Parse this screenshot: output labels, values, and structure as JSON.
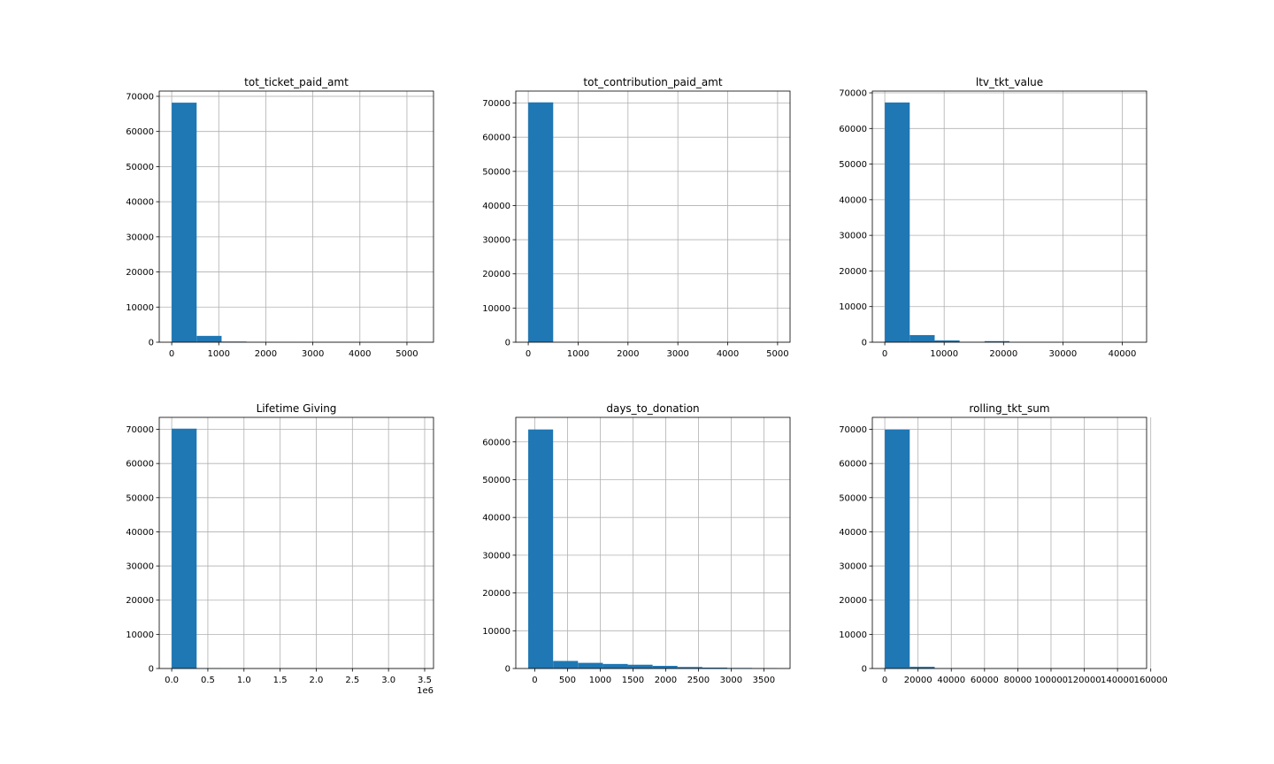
{
  "figure": {
    "bar_color": "#1f77b4",
    "grid_color": "#b0b0b0",
    "layout": "2x3 grid of histograms"
  },
  "chart_data": [
    {
      "type": "bar",
      "title": "tot_ticket_paid_amt",
      "xlim": [
        -265,
        5565
      ],
      "ylim": [
        0,
        71500
      ],
      "bin_edges": [
        0,
        530,
        1060,
        1590,
        2120,
        2650,
        3180,
        3710,
        4240,
        4770,
        5300
      ],
      "values": [
        68200,
        1800,
        180,
        40,
        10,
        5,
        3,
        2,
        1,
        1
      ],
      "xticks": [
        0,
        1000,
        2000,
        3000,
        4000,
        5000
      ],
      "xtick_labels": [
        "0",
        "1000",
        "2000",
        "3000",
        "4000",
        "5000"
      ],
      "yticks": [
        0,
        10000,
        20000,
        30000,
        40000,
        50000,
        60000,
        70000
      ],
      "ytick_labels": [
        "0",
        "10000",
        "20000",
        "30000",
        "40000",
        "50000",
        "60000",
        "70000"
      ],
      "offset_label": "",
      "grid": true
    },
    {
      "type": "bar",
      "title": "tot_contribution_paid_amt",
      "xlim": [
        -250,
        5250
      ],
      "ylim": [
        0,
        73500
      ],
      "bin_edges": [
        0,
        500,
        1000,
        1500,
        2000,
        2500,
        3000,
        3500,
        4000,
        4500,
        5000
      ],
      "values": [
        70200,
        50,
        10,
        5,
        3,
        2,
        1,
        1,
        1,
        1
      ],
      "xticks": [
        0,
        1000,
        2000,
        3000,
        4000,
        5000
      ],
      "xtick_labels": [
        "0",
        "1000",
        "2000",
        "3000",
        "4000",
        "5000"
      ],
      "yticks": [
        0,
        10000,
        20000,
        30000,
        40000,
        50000,
        60000,
        70000
      ],
      "ytick_labels": [
        "0",
        "10000",
        "20000",
        "30000",
        "40000",
        "50000",
        "60000",
        "70000"
      ],
      "offset_label": "",
      "grid": true
    },
    {
      "type": "bar",
      "title": "ltv_tkt_value",
      "xlim": [
        -2100,
        44100
      ],
      "ylim": [
        0,
        70500
      ],
      "bin_edges": [
        0,
        4200,
        8400,
        12600,
        16800,
        21000,
        25200,
        29400,
        33600,
        37800,
        42000
      ],
      "values": [
        67300,
        2000,
        500,
        100,
        300,
        20,
        10,
        5,
        2,
        1
      ],
      "xticks": [
        0,
        10000,
        20000,
        30000,
        40000
      ],
      "xtick_labels": [
        "0",
        "10000",
        "20000",
        "30000",
        "40000"
      ],
      "yticks": [
        0,
        10000,
        20000,
        30000,
        40000,
        50000,
        60000,
        70000
      ],
      "ytick_labels": [
        "0",
        "10000",
        "20000",
        "30000",
        "40000",
        "50000",
        "60000",
        "70000"
      ],
      "offset_label": "",
      "grid": true
    },
    {
      "type": "bar",
      "title": "Lifetime Giving",
      "xlim": [
        -172500,
        3622500
      ],
      "ylim": [
        0,
        73500
      ],
      "bin_edges": [
        0,
        345000,
        690000,
        1035000,
        1380000,
        1725000,
        2070000,
        2415000,
        2760000,
        3105000,
        3450000
      ],
      "values": [
        70200,
        20,
        5,
        2,
        1,
        1,
        1,
        1,
        1,
        1
      ],
      "xticks": [
        0,
        500000,
        1000000,
        1500000,
        2000000,
        2500000,
        3000000,
        3500000
      ],
      "xtick_labels": [
        "0.0",
        "0.5",
        "1.0",
        "1.5",
        "2.0",
        "2.5",
        "3.0",
        "3.5"
      ],
      "yticks": [
        0,
        10000,
        20000,
        30000,
        40000,
        50000,
        60000,
        70000
      ],
      "ytick_labels": [
        "0",
        "10000",
        "20000",
        "30000",
        "40000",
        "50000",
        "60000",
        "70000"
      ],
      "offset_label": "1e6",
      "grid": true
    },
    {
      "type": "bar",
      "title": "days_to_donation",
      "xlim": [
        -290,
        3900
      ],
      "ylim": [
        0,
        66500
      ],
      "bin_edges": [
        -100,
        280,
        660,
        1040,
        1420,
        1800,
        2180,
        2560,
        2940,
        3320,
        3700
      ],
      "values": [
        63300,
        2000,
        1500,
        1200,
        1000,
        700,
        400,
        250,
        150,
        80
      ],
      "xticks": [
        0,
        500,
        1000,
        1500,
        2000,
        2500,
        3000,
        3500
      ],
      "xtick_labels": [
        "0",
        "500",
        "1000",
        "1500",
        "2000",
        "2500",
        "3000",
        "3500"
      ],
      "yticks": [
        0,
        10000,
        20000,
        30000,
        40000,
        50000,
        60000
      ],
      "ytick_labels": [
        "0",
        "10000",
        "20000",
        "30000",
        "40000",
        "50000",
        "60000"
      ],
      "offset_label": "",
      "grid": true
    },
    {
      "type": "bar",
      "title": "rolling_tkt_sum",
      "xlim": [
        -7500,
        157500
      ],
      "ylim": [
        0,
        73500
      ],
      "bin_edges": [
        0,
        15000,
        30000,
        45000,
        60000,
        75000,
        90000,
        105000,
        120000,
        135000,
        150000
      ],
      "values": [
        69900,
        500,
        50,
        10,
        5,
        3,
        2,
        1,
        1,
        1
      ],
      "xticks": [
        0,
        20000,
        40000,
        60000,
        80000,
        100000,
        120000,
        140000,
        160000
      ],
      "xtick_labels": [
        "0",
        "20000",
        "40000",
        "60000",
        "80000",
        "100000",
        "120000",
        "140000",
        "160000"
      ],
      "yticks": [
        0,
        10000,
        20000,
        30000,
        40000,
        50000,
        60000,
        70000
      ],
      "ytick_labels": [
        "0",
        "10000",
        "20000",
        "30000",
        "40000",
        "50000",
        "60000",
        "70000"
      ],
      "offset_label": "",
      "grid": true
    }
  ]
}
